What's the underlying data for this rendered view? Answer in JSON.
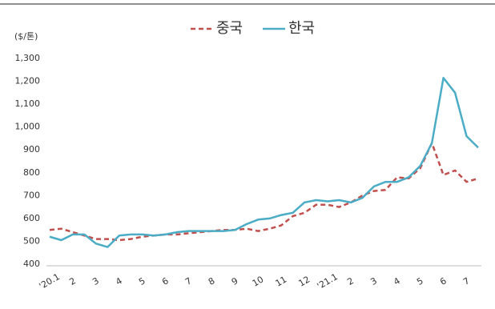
{
  "chart_data": {
    "type": "line",
    "y_unit_label": "($/톤)",
    "categories": [
      "'20.1",
      null,
      "2",
      null,
      "3",
      null,
      "4",
      null,
      "5",
      null,
      "6",
      null,
      "7",
      null,
      "8",
      null,
      "9",
      null,
      "10",
      null,
      "11",
      null,
      "12",
      null,
      "'21.1",
      null,
      "2",
      null,
      "3",
      null,
      "4",
      null,
      "5",
      null,
      "6",
      null,
      "7",
      null
    ],
    "series": [
      {
        "name": "중국",
        "color": "#c0504d",
        "style": "dashed",
        "values": [
          550,
          555,
          540,
          525,
          510,
          510,
          505,
          510,
          520,
          525,
          530,
          530,
          535,
          540,
          545,
          550,
          550,
          555,
          545,
          555,
          570,
          610,
          625,
          660,
          660,
          650,
          670,
          700,
          720,
          725,
          780,
          775,
          820,
          930,
          790,
          810,
          760,
          775
        ]
      },
      {
        "name": "한국",
        "color": "#4bacc6",
        "style": "solid",
        "values": [
          520,
          505,
          530,
          530,
          490,
          475,
          525,
          530,
          530,
          525,
          530,
          540,
          545,
          545,
          545,
          545,
          550,
          575,
          595,
          600,
          615,
          625,
          670,
          680,
          675,
          680,
          670,
          690,
          740,
          760,
          760,
          780,
          830,
          930,
          1215,
          1150,
          960,
          910
        ]
      }
    ],
    "ylim": [
      400,
      1300
    ],
    "yticks": [
      400,
      500,
      600,
      700,
      800,
      900,
      {
        "value": 1000,
        "label": "1,000"
      },
      {
        "value": 1100,
        "label": "1,100"
      },
      {
        "value": 1200,
        "label": "1,200"
      },
      {
        "value": 1300,
        "label": "1,300"
      }
    ],
    "grid": false,
    "legend": "top"
  }
}
